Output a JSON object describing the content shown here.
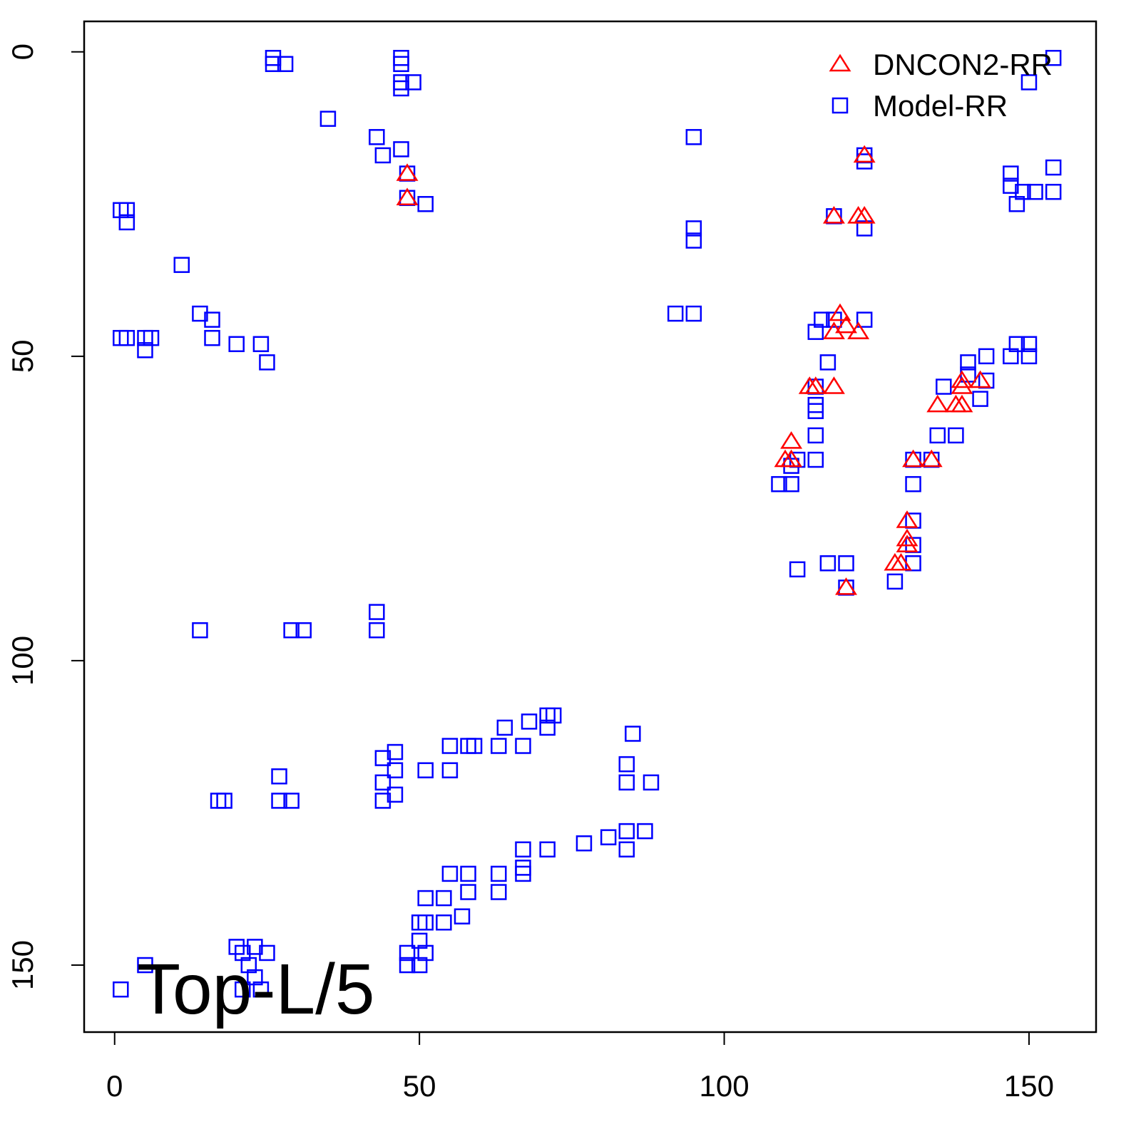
{
  "chart_data": {
    "type": "scatter",
    "annotation": "Top-L/5",
    "xlim": [
      -5,
      161
    ],
    "ylim": [
      -5,
      161
    ],
    "y_reversed": true,
    "xticks": [
      0,
      50,
      100,
      150
    ],
    "yticks": [
      0,
      50,
      100,
      150
    ],
    "legend": "top-right",
    "series": [
      {
        "name": "DNCON2-RR",
        "color": "#ff0000",
        "marker": "triangle",
        "x": [
          48,
          48,
          123,
          118,
          122,
          123,
          119,
          118,
          122,
          120,
          114,
          115,
          118,
          111,
          111,
          110,
          135,
          138,
          139,
          139,
          139,
          142,
          131,
          134,
          130,
          130,
          130,
          129,
          128,
          120
        ],
        "values": [
          20,
          24,
          17,
          27,
          27,
          27,
          43,
          46,
          46,
          45,
          55,
          55,
          55,
          64,
          67,
          67,
          58,
          58,
          58,
          54,
          55,
          54,
          67,
          67,
          77,
          80,
          81,
          84,
          84,
          88
        ]
      },
      {
        "name": "Model-RR",
        "color": "#0000ff",
        "marker": "square",
        "x": [
          26,
          26,
          28,
          47,
          47,
          47,
          47,
          49,
          35,
          43,
          44,
          47,
          48,
          48,
          51,
          1,
          2,
          2,
          11,
          14,
          16,
          16,
          1,
          2,
          5,
          6,
          5,
          20,
          24,
          25,
          14,
          29,
          31,
          43,
          43,
          95,
          95,
          95,
          92,
          95,
          123,
          123,
          118,
          123,
          116,
          118,
          123,
          115,
          117,
          115,
          115,
          115,
          115,
          115,
          111,
          112,
          109,
          111,
          112,
          117,
          120,
          120,
          154,
          147,
          147,
          149,
          151,
          154,
          148,
          154,
          150,
          136,
          140,
          140,
          143,
          143,
          147,
          148,
          150,
          150,
          142,
          135,
          138,
          131,
          131,
          131,
          131,
          128,
          134,
          131,
          27,
          27,
          29,
          17,
          18,
          44,
          44,
          44,
          46,
          46,
          46,
          51,
          55,
          55,
          58,
          59,
          64,
          63,
          67,
          68,
          71,
          72,
          71,
          85,
          84,
          84,
          88,
          87,
          84,
          84,
          81,
          77,
          71,
          67,
          67,
          67,
          63,
          63,
          58,
          55,
          58,
          57,
          54,
          51,
          54,
          50,
          51,
          50,
          51,
          48,
          48,
          50,
          20,
          21,
          23,
          25,
          22,
          23,
          24,
          21,
          5,
          1
        ],
        "values": [
          1,
          2,
          2,
          1,
          2,
          5,
          6,
          5,
          11,
          14,
          17,
          16,
          20,
          24,
          25,
          26,
          26,
          28,
          35,
          43,
          44,
          47,
          47,
          47,
          47,
          47,
          49,
          48,
          48,
          51,
          95,
          95,
          95,
          92,
          95,
          14,
          29,
          31,
          43,
          43,
          17,
          18,
          27,
          29,
          44,
          44,
          44,
          46,
          51,
          55,
          58,
          59,
          63,
          67,
          68,
          67,
          71,
          71,
          85,
          84,
          84,
          88,
          19,
          20,
          22,
          23,
          23,
          23,
          25,
          1,
          5,
          55,
          51,
          53,
          54,
          50,
          50,
          48,
          48,
          50,
          57,
          63,
          63,
          71,
          77,
          81,
          84,
          87,
          67,
          67,
          119,
          123,
          123,
          123,
          123,
          116,
          120,
          123,
          115,
          118,
          122,
          118,
          114,
          118,
          114,
          114,
          111,
          114,
          114,
          110,
          109,
          109,
          111,
          112,
          117,
          120,
          120,
          128,
          128,
          131,
          129,
          130,
          131,
          131,
          134,
          135,
          135,
          138,
          135,
          135,
          138,
          142,
          139,
          139,
          143,
          143,
          143,
          146,
          148,
          148,
          150,
          150,
          147,
          148,
          147,
          148,
          150,
          152,
          154,
          154,
          150,
          154
        ]
      }
    ]
  }
}
